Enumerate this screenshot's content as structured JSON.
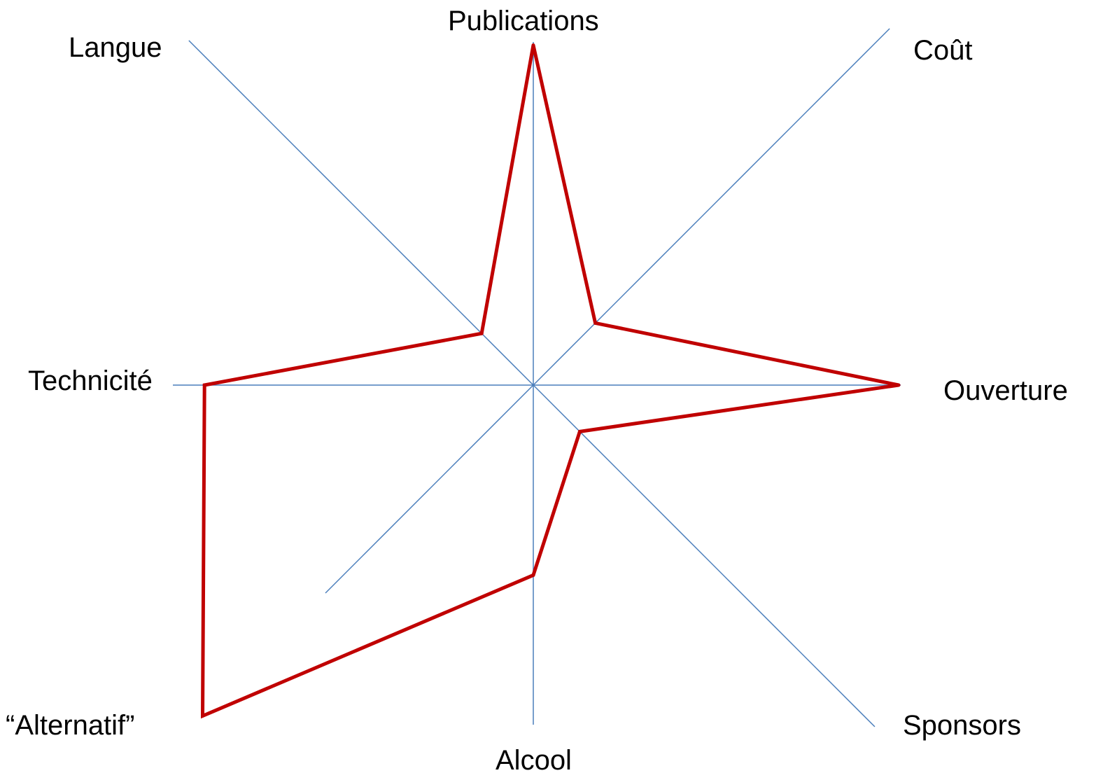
{
  "chart_data": {
    "type": "radar",
    "title": "",
    "axes": [
      "Publications",
      "Coût",
      "Ouverture",
      "Sponsors",
      "Alcool",
      "“Alternatif”",
      "Technicité",
      "Langue"
    ],
    "range": [
      0,
      1
    ],
    "series": [
      {
        "values": [
          0.93,
          0.24,
          1.0,
          0.18,
          0.52,
          1.28,
          0.9,
          0.2
        ],
        "color": "#c00000"
      }
    ],
    "axis_color": "#4a7ebb",
    "grid": false,
    "legend": "none"
  }
}
